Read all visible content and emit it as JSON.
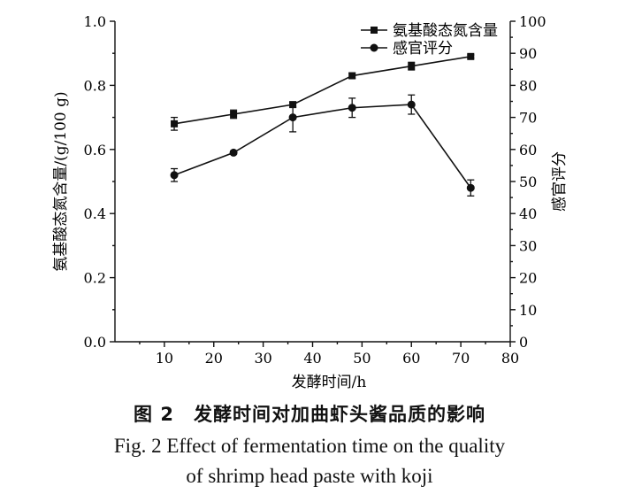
{
  "chart_data": {
    "type": "line",
    "x": [
      12,
      24,
      36,
      48,
      60,
      72
    ],
    "xlabel": "发酵时间/h",
    "xlim": [
      0,
      80
    ],
    "xticks": [
      10,
      20,
      30,
      40,
      50,
      60,
      70,
      80
    ],
    "ylabel_left": "氨基酸态氮含量/(g/100 g)",
    "ylim_left": [
      0.0,
      1.0
    ],
    "yticks_left": [
      "0.0",
      "0.2",
      "0.4",
      "0.6",
      "0.8",
      "1.0"
    ],
    "ylabel_right": "感官评分",
    "ylim_right": [
      0,
      100
    ],
    "yticks_right": [
      "0",
      "10",
      "20",
      "30",
      "40",
      "50",
      "60",
      "70",
      "80",
      "90",
      "100"
    ],
    "legend_position": "top-right",
    "series": [
      {
        "name": "氨基酸态氮含量",
        "axis": "left",
        "marker": "square",
        "values": [
          0.68,
          0.71,
          0.74,
          0.83,
          0.86,
          0.89
        ],
        "errors": [
          0.02,
          0.013,
          0.008,
          0.008,
          0.012,
          0.005
        ]
      },
      {
        "name": "感官评分",
        "axis": "right",
        "marker": "circle",
        "values": [
          52,
          59,
          70,
          73,
          74,
          48
        ],
        "errors": [
          2,
          0.5,
          4.5,
          3,
          3,
          2.5
        ]
      }
    ],
    "grid": false
  },
  "caption": {
    "chinese": "图 2　发酵时间对加曲虾头酱品质的影响",
    "english_line1": "Fig. 2 Effect of fermentation time on the quality",
    "english_line2": "of shrimp head paste with koji"
  }
}
